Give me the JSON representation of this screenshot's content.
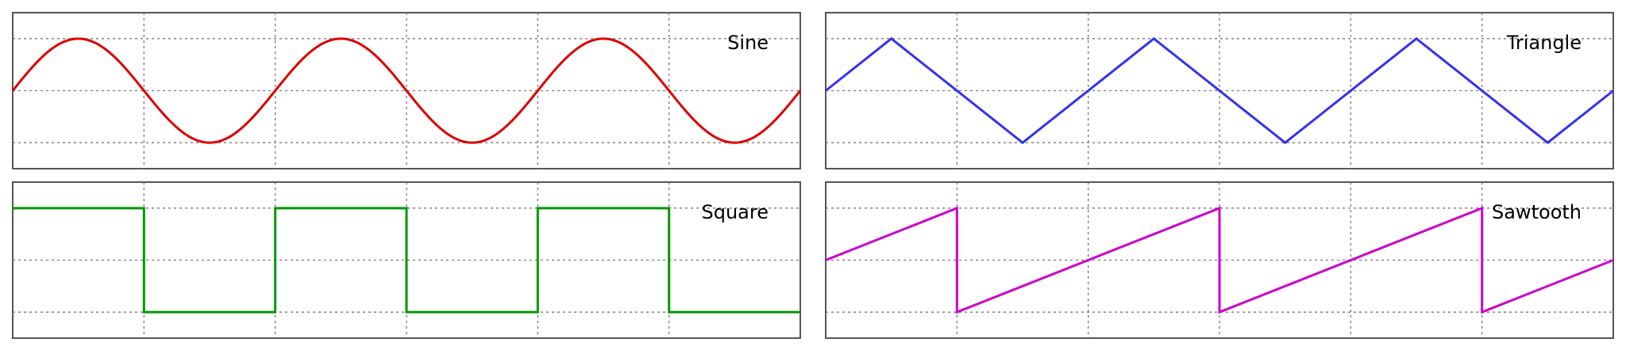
{
  "chart_data": [
    {
      "type": "line",
      "title": "Sine",
      "color": "#dd0000",
      "x": [
        0,
        0.125,
        0.25,
        0.375,
        0.5,
        0.625,
        0.75,
        0.875,
        1,
        1.125,
        1.25,
        1.375,
        1.5,
        1.625,
        1.75,
        1.875,
        2,
        2.125,
        2.25,
        2.375,
        2.5,
        2.625,
        2.75,
        2.875,
        3
      ],
      "y": [
        0,
        0.707,
        1,
        0.707,
        0,
        -0.707,
        -1,
        -0.707,
        0,
        0.707,
        1,
        0.707,
        0,
        -0.707,
        -1,
        -0.707,
        0,
        0.707,
        1,
        0.707,
        0,
        -0.707,
        -1,
        -0.707,
        0
      ],
      "xlim": [
        0,
        3
      ],
      "ylim": [
        -1.5,
        1.5
      ],
      "grid": true,
      "label_position": "top-right"
    },
    {
      "type": "line",
      "title": "Triangle",
      "color": "#3333ee",
      "x": [
        0,
        0.25,
        0.75,
        1.25,
        1.75,
        2.25,
        2.75,
        3
      ],
      "y": [
        0,
        1,
        -1,
        1,
        -1,
        1,
        -1,
        0
      ],
      "xlim": [
        0,
        3
      ],
      "ylim": [
        -1.5,
        1.5
      ],
      "grid": true,
      "label_position": "top-right"
    },
    {
      "type": "line",
      "title": "Square",
      "color": "#009900",
      "x": [
        0,
        0.5,
        0.5,
        1,
        1,
        1.5,
        1.5,
        2,
        2,
        2.5,
        2.5,
        3
      ],
      "y": [
        1,
        1,
        -1,
        -1,
        1,
        1,
        -1,
        -1,
        1,
        1,
        -1,
        -1
      ],
      "xlim": [
        0,
        3
      ],
      "ylim": [
        -1.5,
        1.5
      ],
      "grid": true,
      "label_position": "top-right"
    },
    {
      "type": "line",
      "title": "Sawtooth",
      "color": "#cc00cc",
      "x": [
        0,
        0.5,
        0.5,
        1.5,
        1.5,
        2.5,
        2.5,
        3
      ],
      "y": [
        0,
        1,
        -1,
        1,
        -1,
        1,
        -1,
        0
      ],
      "xlim": [
        0,
        3
      ],
      "ylim": [
        -1.5,
        1.5
      ],
      "grid": true,
      "label_position": "top-right"
    }
  ]
}
